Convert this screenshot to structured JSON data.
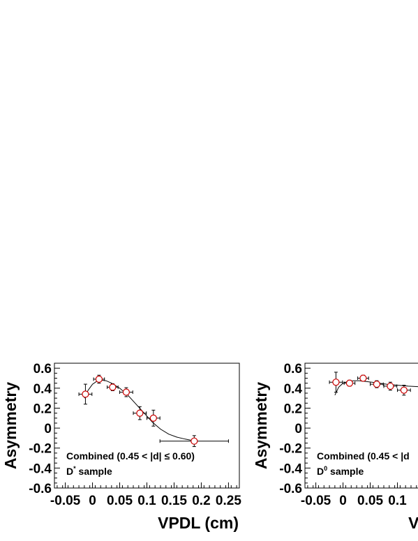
{
  "chart_data": [
    {
      "type": "scatter",
      "panel": "left",
      "xlabel": "VPDL (cm)",
      "ylabel": "Asymmetry",
      "xlim": [
        -0.07,
        0.27
      ],
      "ylim": [
        -0.6,
        0.65
      ],
      "xticks": [
        -0.05,
        0,
        0.05,
        0.1,
        0.15,
        0.2,
        0.25
      ],
      "xtick_labels": [
        "-0.05",
        "0",
        "0.05",
        "0.1",
        "0.15",
        "0.2",
        "0.25"
      ],
      "yticks": [
        0.6,
        0.4,
        0.2,
        0,
        -0.2,
        -0.4,
        -0.6
      ],
      "ytick_labels": [
        "0.6",
        "0.4",
        "0.2",
        "0",
        "-0.2",
        "-0.4",
        "-0.6"
      ],
      "annotation_line1": "Combined (0.45 < |d| ≤ 0.60)",
      "annotation_line2_main": "D",
      "annotation_line2_sup": "*",
      "annotation_line2_rest": " sample",
      "points": [
        {
          "x": -0.013,
          "y": 0.34,
          "xerr": 0.012,
          "yerr": 0.1
        },
        {
          "x": 0.012,
          "y": 0.49,
          "xerr": 0.01,
          "yerr": 0.04
        },
        {
          "x": 0.037,
          "y": 0.41,
          "xerr": 0.01,
          "yerr": 0.035
        },
        {
          "x": 0.062,
          "y": 0.36,
          "xerr": 0.012,
          "yerr": 0.045
        },
        {
          "x": 0.087,
          "y": 0.15,
          "xerr": 0.012,
          "yerr": 0.065
        },
        {
          "x": 0.112,
          "y": 0.1,
          "xerr": 0.012,
          "yerr": 0.08
        },
        {
          "x": 0.187,
          "y": -0.13,
          "xerr": 0.063,
          "yerr": 0.055
        }
      ],
      "fit_curve": {
        "x": [
          -0.015,
          -0.008,
          0,
          0.008,
          0.015,
          0.025,
          0.035,
          0.05,
          0.065,
          0.08,
          0.095,
          0.11,
          0.125,
          0.14,
          0.155,
          0.17,
          0.18,
          0.19
        ],
        "y": [
          0.3,
          0.38,
          0.44,
          0.47,
          0.48,
          0.475,
          0.45,
          0.4,
          0.33,
          0.24,
          0.15,
          0.06,
          -0.01,
          -0.06,
          -0.09,
          -0.11,
          -0.12,
          -0.125
        ]
      }
    },
    {
      "type": "scatter",
      "panel": "right",
      "xlabel": "VPDL (cm)",
      "ylabel": "Asymmetry",
      "xlim": [
        -0.07,
        0.27
      ],
      "ylim": [
        -0.6,
        0.65
      ],
      "xticks": [
        -0.05,
        0,
        0.05,
        0.1
      ],
      "xtick_labels": [
        "-0.05",
        "0",
        "0.05",
        "0.1"
      ],
      "yticks": [
        0.6,
        0.4,
        0.2,
        0,
        -0.2,
        -0.4,
        -0.6
      ],
      "ytick_labels": [
        "0.6",
        "0.4",
        "0.2",
        "0",
        "-0.2",
        "-0.4",
        "-0.6"
      ],
      "annotation_line1": "Combined (0.45 < |d",
      "annotation_line2_main": "D",
      "annotation_line2_sup": "0",
      "annotation_line2_rest": " sample",
      "points": [
        {
          "x": -0.013,
          "y": 0.46,
          "xerr": 0.012,
          "yerr": 0.1
        },
        {
          "x": 0.012,
          "y": 0.45,
          "xerr": 0.01,
          "yerr": 0.03
        },
        {
          "x": 0.037,
          "y": 0.5,
          "xerr": 0.01,
          "yerr": 0.03
        },
        {
          "x": 0.062,
          "y": 0.44,
          "xerr": 0.012,
          "yerr": 0.035
        },
        {
          "x": 0.087,
          "y": 0.42,
          "xerr": 0.012,
          "yerr": 0.04
        },
        {
          "x": 0.112,
          "y": 0.38,
          "xerr": 0.012,
          "yerr": 0.05
        }
      ],
      "fit_curve": {
        "x": [
          -0.015,
          -0.008,
          0,
          0.01,
          0.02,
          0.03,
          0.045,
          0.06,
          0.08,
          0.1,
          0.12,
          0.14,
          0.16,
          0.2,
          0.25
        ],
        "y": [
          0.33,
          0.41,
          0.45,
          0.47,
          0.475,
          0.475,
          0.465,
          0.455,
          0.44,
          0.43,
          0.42,
          0.415,
          0.41,
          0.405,
          0.4
        ]
      }
    }
  ]
}
